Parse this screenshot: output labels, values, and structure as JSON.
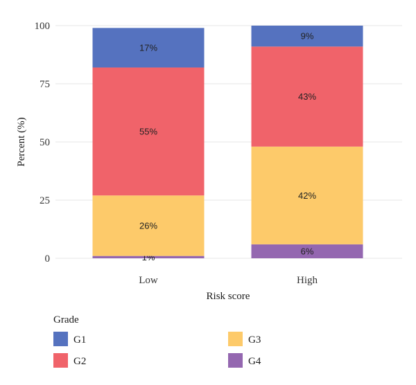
{
  "chart_data": {
    "type": "bar",
    "stacked": true,
    "categories": [
      "Low",
      "High"
    ],
    "series": [
      {
        "name": "G4",
        "color": "#9467b0",
        "values": [
          1,
          6
        ],
        "labels": [
          "1%",
          "6%"
        ]
      },
      {
        "name": "G3",
        "color": "#fdca6a",
        "values": [
          26,
          42
        ],
        "labels": [
          "26%",
          "42%"
        ]
      },
      {
        "name": "G2",
        "color": "#f0636a",
        "values": [
          55,
          43
        ],
        "labels": [
          "55%",
          "43%"
        ]
      },
      {
        "name": "G1",
        "color": "#5572bf",
        "values": [
          17,
          9
        ],
        "labels": [
          "17%",
          "9%"
        ]
      }
    ],
    "xlabel": "Risk score",
    "ylabel": "Percent (%)",
    "ylim": [
      0,
      100
    ],
    "yticks": [
      "0",
      "25",
      "50",
      "75",
      "100"
    ],
    "grid": true,
    "legend": {
      "title": "Grade",
      "placement": "bottom",
      "items": [
        {
          "name": "G1",
          "color": "#5572bf"
        },
        {
          "name": "G3",
          "color": "#fdca6a"
        },
        {
          "name": "G2",
          "color": "#f0636a"
        },
        {
          "name": "G4",
          "color": "#9467b0"
        }
      ]
    }
  }
}
